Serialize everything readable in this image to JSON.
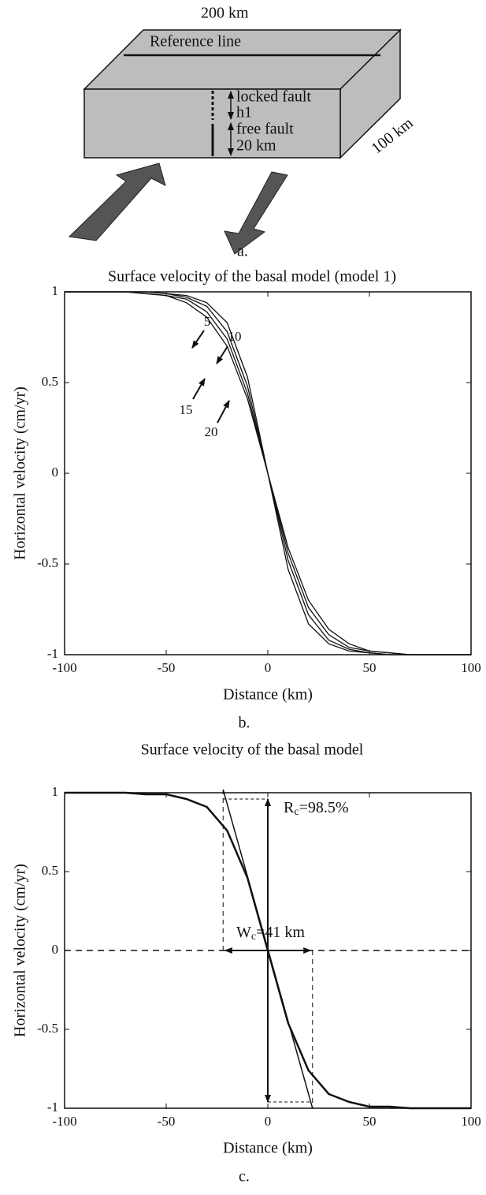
{
  "diagram": {
    "width_label": "200 km",
    "reference_label": "Reference line",
    "depth_label": "100 km",
    "locked_label": "locked fault",
    "locked_depth": "h1",
    "free_label": "free fault",
    "free_depth": "20 km",
    "caption": "a."
  },
  "chart_data": [
    {
      "type": "line",
      "title": "Surface velocity of the basal model (model 1)",
      "x_label": "Distance (km)",
      "y_label": "Horizontal velocity (cm/yr)",
      "caption": "b.",
      "x": [
        -100,
        -90,
        -80,
        -70,
        -60,
        -50,
        -40,
        -30,
        -20,
        -10,
        0,
        10,
        20,
        30,
        40,
        50,
        60,
        70,
        80,
        90,
        100
      ],
      "xlim": [
        -100,
        100
      ],
      "ylim": [
        -1,
        1
      ],
      "xticks": [
        -100,
        -50,
        0,
        50,
        100
      ],
      "yticks": [
        -1,
        -0.5,
        0,
        0.5,
        1
      ],
      "series": [
        {
          "name": "5",
          "color": "#111111",
          "values": [
            1,
            1,
            1,
            1,
            1,
            0.99,
            0.98,
            0.94,
            0.83,
            0.53,
            0,
            -0.53,
            -0.83,
            -0.94,
            -0.98,
            -0.99,
            -1,
            -1,
            -1,
            -1,
            -1
          ]
        },
        {
          "name": "10",
          "color": "#111111",
          "values": [
            1,
            1,
            1,
            1,
            1,
            0.99,
            0.97,
            0.92,
            0.78,
            0.48,
            0,
            -0.48,
            -0.78,
            -0.92,
            -0.97,
            -0.99,
            -1,
            -1,
            -1,
            -1,
            -1
          ]
        },
        {
          "name": "15",
          "color": "#111111",
          "values": [
            1,
            1,
            1,
            1,
            0.99,
            0.98,
            0.96,
            0.89,
            0.74,
            0.44,
            0,
            -0.44,
            -0.74,
            -0.89,
            -0.96,
            -0.98,
            -0.99,
            -1,
            -1,
            -1,
            -1
          ]
        },
        {
          "name": "20",
          "color": "#111111",
          "values": [
            1,
            1,
            1,
            1,
            0.99,
            0.98,
            0.94,
            0.86,
            0.7,
            0.41,
            0,
            -0.41,
            -0.7,
            -0.86,
            -0.94,
            -0.98,
            -0.99,
            -1,
            -1,
            -1,
            -1
          ]
        }
      ]
    },
    {
      "type": "line",
      "title": "Surface velocity of the basal model",
      "x_label": "Distance (km)",
      "y_label": "Horizontal velocity (cm/yr)",
      "caption": "c.",
      "x": [
        -100,
        -90,
        -80,
        -70,
        -60,
        -50,
        -40,
        -30,
        -20,
        -10,
        0,
        10,
        20,
        30,
        40,
        50,
        60,
        70,
        80,
        90,
        100
      ],
      "xlim": [
        -100,
        100
      ],
      "ylim": [
        -1,
        1
      ],
      "xticks": [
        -100,
        -50,
        0,
        50,
        100
      ],
      "yticks": [
        -1,
        -0.5,
        0,
        0.5,
        1
      ],
      "series": [
        {
          "color": "#111111",
          "values": [
            1,
            1,
            1,
            1,
            0.99,
            0.99,
            0.96,
            0.91,
            0.76,
            0.46,
            0,
            -0.46,
            -0.76,
            -0.91,
            -0.96,
            -0.99,
            -0.99,
            -1,
            -1,
            -1,
            -1
          ]
        }
      ],
      "tangent": {
        "x": [
          -22,
          22
        ],
        "y": [
          1.02,
          -1
        ]
      },
      "ratio_arrow": [
        0.96,
        -0.96
      ],
      "width_arrow": [
        -21,
        21
      ],
      "ratio_annotation": {
        "main": "R",
        "sub": "c",
        "rest": "=98.5%"
      },
      "width_annotation": {
        "main": "W",
        "sub": "c",
        "rest": "=41 km"
      }
    }
  ]
}
